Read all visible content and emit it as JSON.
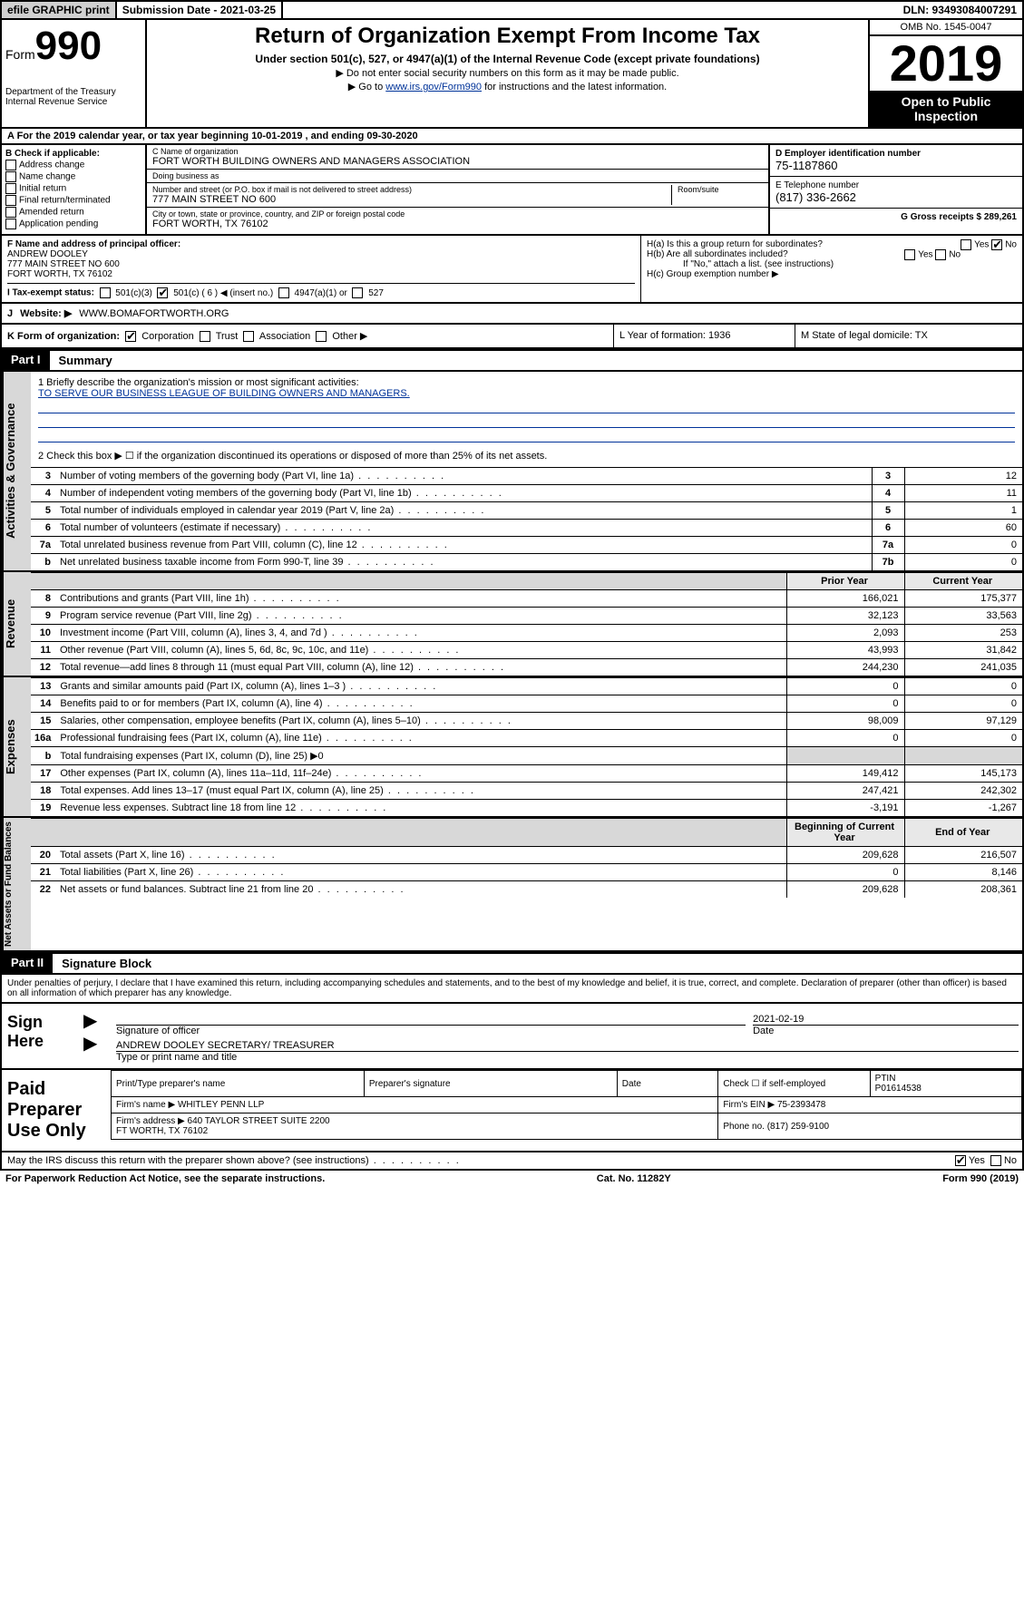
{
  "topbar": {
    "efile": "efile GRAPHIC print",
    "submission_label": "Submission Date - 2021-03-25",
    "dln_label": "DLN: 93493084007291"
  },
  "header": {
    "form_prefix": "Form",
    "form_number": "990",
    "dept": "Department of the Treasury\nInternal Revenue Service",
    "title": "Return of Organization Exempt From Income Tax",
    "subtitle": "Under section 501(c), 527, or 4947(a)(1) of the Internal Revenue Code (except private foundations)",
    "note1": "▶ Do not enter social security numbers on this form as it may be made public.",
    "note2_pre": "▶ Go to ",
    "note2_link": "www.irs.gov/Form990",
    "note2_post": " for instructions and the latest information.",
    "omb": "OMB No. 1545-0047",
    "year": "2019",
    "open_public": "Open to Public Inspection"
  },
  "lineA": "A  For the 2019 calendar year, or tax year beginning 10-01-2019    , and ending 09-30-2020",
  "boxB": {
    "label": "B Check if applicable:",
    "items": [
      "Address change",
      "Name change",
      "Initial return",
      "Final return/terminated",
      "Amended return",
      "Application pending"
    ]
  },
  "boxC": {
    "name_label": "C Name of organization",
    "name": "FORT WORTH BUILDING OWNERS AND MANAGERS ASSOCIATION",
    "dba_label": "Doing business as",
    "dba": "",
    "addr_label": "Number and street (or P.O. box if mail is not delivered to street address)",
    "room_label": "Room/suite",
    "addr": "777 MAIN STREET NO 600",
    "city_label": "City or town, state or province, country, and ZIP or foreign postal code",
    "city": "FORT WORTH, TX  76102"
  },
  "boxD": {
    "label": "D Employer identification number",
    "value": "75-1187860"
  },
  "boxE": {
    "label": "E Telephone number",
    "value": "(817) 336-2662"
  },
  "boxG": {
    "label": "G Gross receipts $ 289,261"
  },
  "boxF": {
    "label": "F  Name and address of principal officer:",
    "name": "ANDREW DOOLEY",
    "addr1": "777 MAIN STREET NO 600",
    "addr2": "FORT WORTH, TX  76102"
  },
  "boxH": {
    "ha": "H(a)  Is this a group return for subordinates?",
    "hb": "H(b)  Are all subordinates included?",
    "hb_note": "If \"No,\" attach a list. (see instructions)",
    "hc": "H(c)  Group exemption number ▶"
  },
  "taxstatus": {
    "label": "I   Tax-exempt status:",
    "opts": [
      "501(c)(3)",
      "501(c) ( 6 ) ◀ (insert no.)",
      "4947(a)(1) or",
      "527"
    ]
  },
  "website": {
    "label": "J",
    "text": "Website: ▶",
    "value": "WWW.BOMAFORTWORTH.ORG"
  },
  "klm": {
    "k": "K Form of organization:",
    "k_opts": [
      "Corporation",
      "Trust",
      "Association",
      "Other ▶"
    ],
    "l": "L Year of formation: 1936",
    "m": "M State of legal domicile: TX"
  },
  "part1": {
    "label": "Part I",
    "title": "Summary"
  },
  "summary": {
    "q1": "1   Briefly describe the organization's mission or most significant activities:",
    "mission": "TO SERVE OUR BUSINESS LEAGUE OF BUILDING OWNERS AND MANAGERS.",
    "q2": "2   Check this box ▶ ☐  if the organization discontinued its operations or disposed of more than 25% of its net assets.",
    "rows_gov": [
      {
        "n": "3",
        "d": "Number of voting members of the governing body (Part VI, line 1a)",
        "box": "3",
        "v": "12"
      },
      {
        "n": "4",
        "d": "Number of independent voting members of the governing body (Part VI, line 1b)",
        "box": "4",
        "v": "11"
      },
      {
        "n": "5",
        "d": "Total number of individuals employed in calendar year 2019 (Part V, line 2a)",
        "box": "5",
        "v": "1"
      },
      {
        "n": "6",
        "d": "Total number of volunteers (estimate if necessary)",
        "box": "6",
        "v": "60"
      },
      {
        "n": "7a",
        "d": "Total unrelated business revenue from Part VIII, column (C), line 12",
        "box": "7a",
        "v": "0"
      },
      {
        "n": "b",
        "d": "Net unrelated business taxable income from Form 990-T, line 39",
        "box": "7b",
        "v": "0"
      }
    ],
    "prior_label": "Prior Year",
    "current_label": "Current Year",
    "rows_rev": [
      {
        "n": "8",
        "d": "Contributions and grants (Part VIII, line 1h)",
        "p": "166,021",
        "c": "175,377"
      },
      {
        "n": "9",
        "d": "Program service revenue (Part VIII, line 2g)",
        "p": "32,123",
        "c": "33,563"
      },
      {
        "n": "10",
        "d": "Investment income (Part VIII, column (A), lines 3, 4, and 7d )",
        "p": "2,093",
        "c": "253"
      },
      {
        "n": "11",
        "d": "Other revenue (Part VIII, column (A), lines 5, 6d, 8c, 9c, 10c, and 11e)",
        "p": "43,993",
        "c": "31,842"
      },
      {
        "n": "12",
        "d": "Total revenue—add lines 8 through 11 (must equal Part VIII, column (A), line 12)",
        "p": "244,230",
        "c": "241,035"
      }
    ],
    "rows_exp": [
      {
        "n": "13",
        "d": "Grants and similar amounts paid (Part IX, column (A), lines 1–3 )",
        "p": "0",
        "c": "0"
      },
      {
        "n": "14",
        "d": "Benefits paid to or for members (Part IX, column (A), line 4)",
        "p": "0",
        "c": "0"
      },
      {
        "n": "15",
        "d": "Salaries, other compensation, employee benefits (Part IX, column (A), lines 5–10)",
        "p": "98,009",
        "c": "97,129"
      },
      {
        "n": "16a",
        "d": "Professional fundraising fees (Part IX, column (A), line 11e)",
        "p": "0",
        "c": "0"
      },
      {
        "n": "b",
        "d": "Total fundraising expenses (Part IX, column (D), line 25) ▶0",
        "p": "",
        "c": "",
        "shade": true
      },
      {
        "n": "17",
        "d": "Other expenses (Part IX, column (A), lines 11a–11d, 11f–24e)",
        "p": "149,412",
        "c": "145,173"
      },
      {
        "n": "18",
        "d": "Total expenses. Add lines 13–17 (must equal Part IX, column (A), line 25)",
        "p": "247,421",
        "c": "242,302"
      },
      {
        "n": "19",
        "d": "Revenue less expenses. Subtract line 18 from line 12",
        "p": "-3,191",
        "c": "-1,267"
      }
    ],
    "begin_label": "Beginning of Current Year",
    "end_label": "End of Year",
    "rows_net": [
      {
        "n": "20",
        "d": "Total assets (Part X, line 16)",
        "p": "209,628",
        "c": "216,507"
      },
      {
        "n": "21",
        "d": "Total liabilities (Part X, line 26)",
        "p": "0",
        "c": "8,146"
      },
      {
        "n": "22",
        "d": "Net assets or fund balances. Subtract line 21 from line 20",
        "p": "209,628",
        "c": "208,361"
      }
    ]
  },
  "sides": {
    "gov": "Activities & Governance",
    "rev": "Revenue",
    "exp": "Expenses",
    "net": "Net Assets or Fund Balances"
  },
  "part2": {
    "label": "Part II",
    "title": "Signature Block"
  },
  "perjury": "Under penalties of perjury, I declare that I have examined this return, including accompanying schedules and statements, and to the best of my knowledge and belief, it is true, correct, and complete. Declaration of preparer (other than officer) is based on all information of which preparer has any knowledge.",
  "sign": {
    "here": "Sign Here",
    "sig_label": "Signature of officer",
    "date": "2021-02-19",
    "date_label": "Date",
    "name": "ANDREW DOOLEY  SECRETARY/ TREASURER",
    "name_label": "Type or print name and title"
  },
  "prep": {
    "title": "Paid Preparer Use Only",
    "h1": "Print/Type preparer's name",
    "h2": "Preparer's signature",
    "h3": "Date",
    "h4": "Check ☐ if self-employed",
    "h5_label": "PTIN",
    "h5": "P01614538",
    "firm_label": "Firm's name    ▶",
    "firm": "WHITLEY PENN LLP",
    "ein_label": "Firm's EIN ▶",
    "ein": "75-2393478",
    "addr_label": "Firm's address ▶",
    "addr": "640 TAYLOR STREET SUITE 2200\nFT WORTH, TX  76102",
    "phone_label": "Phone no.",
    "phone": "(817) 259-9100"
  },
  "discuss": "May the IRS discuss this return with the preparer shown above? (see instructions)",
  "pwra": {
    "l": "For Paperwork Reduction Act Notice, see the separate instructions.",
    "c": "Cat. No. 11282Y",
    "r": "Form 990 (2019)"
  }
}
